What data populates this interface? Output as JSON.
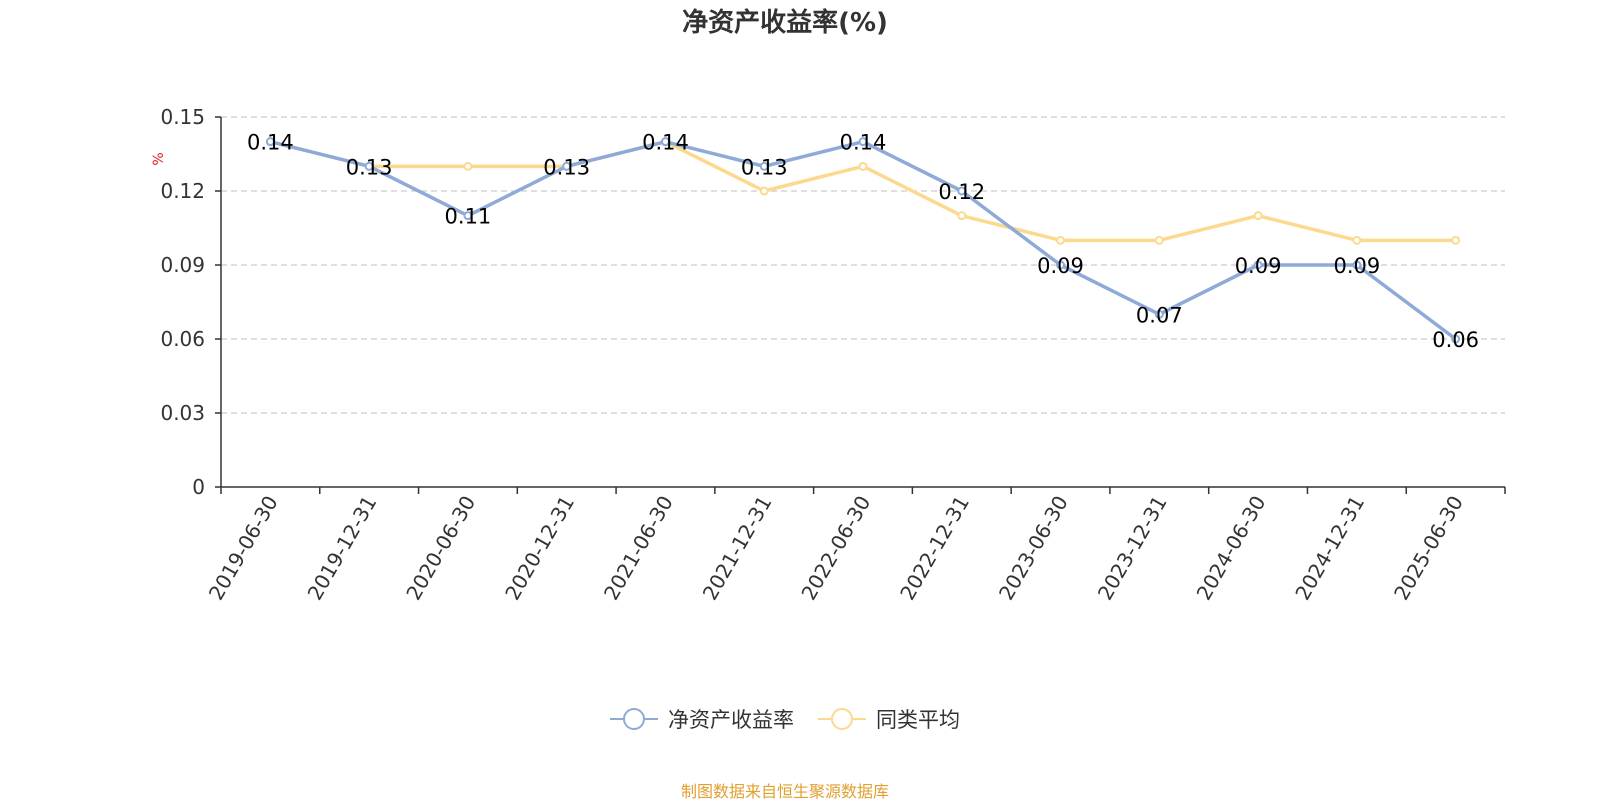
{
  "chart_data": {
    "type": "line",
    "title": "净资产收益率(%)",
    "ylabel": "%",
    "xlabel": "",
    "categories": [
      "2019-06-30",
      "2019-12-31",
      "2020-06-30",
      "2020-12-31",
      "2021-06-30",
      "2021-12-31",
      "2022-06-30",
      "2022-12-31",
      "2023-06-30",
      "2023-12-31",
      "2024-06-30",
      "2024-12-31",
      "2025-06-30"
    ],
    "ylim": [
      0,
      0.15
    ],
    "yticks": [
      "0",
      "0.03",
      "0.06",
      "0.09",
      "0.12",
      "0.15"
    ],
    "grid": true,
    "legend_position": "bottom",
    "series": [
      {
        "name": "净资产收益率",
        "color": "#8eaad8",
        "values": [
          0.14,
          0.13,
          0.11,
          0.13,
          0.14,
          0.13,
          0.14,
          0.12,
          0.09,
          0.07,
          0.09,
          0.09,
          0.06
        ],
        "labels": [
          "0.14",
          "0.13",
          "0.11",
          "0.13",
          "0.14",
          "0.13",
          "0.14",
          "0.12",
          "0.09",
          "0.07",
          "0.09",
          "0.09",
          "0.06"
        ]
      },
      {
        "name": "同类平均",
        "color": "#fbd98f",
        "values": [
          0.14,
          0.13,
          0.13,
          0.13,
          0.14,
          0.12,
          0.13,
          0.11,
          0.1,
          0.1,
          0.11,
          0.1,
          0.1
        ]
      }
    ]
  },
  "source_note": "制图数据来自恒生聚源数据库",
  "colors": {
    "title": "#333333",
    "axis": "#333333",
    "grid": "#cccccc",
    "ylabel": "#e02020",
    "source": "#e0a030"
  }
}
